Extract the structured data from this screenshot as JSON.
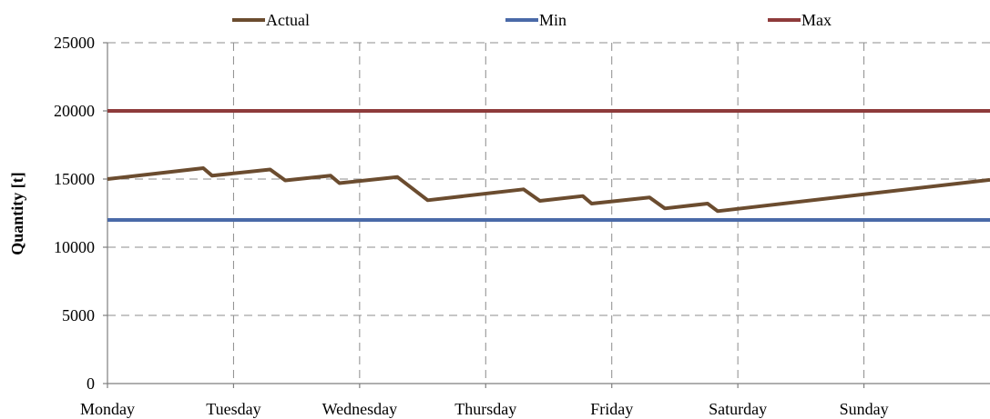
{
  "chart_data": {
    "type": "line",
    "title": "",
    "xlabel": "",
    "ylabel": "Quantity [t]",
    "ylim": [
      0,
      25000
    ],
    "yticks": [
      0,
      5000,
      10000,
      15000,
      20000,
      25000
    ],
    "categories": [
      "Monday",
      "Tuesday",
      "Wednesday",
      "Thursday",
      "Friday",
      "Saturday",
      "Sunday"
    ],
    "xlim": [
      0,
      7
    ],
    "grid": true,
    "legend": "top",
    "series": [
      {
        "name": "Actual",
        "color": "#6b4c2f",
        "points": [
          [
            0,
            15000
          ],
          [
            0.76,
            15800
          ],
          [
            0.83,
            15250
          ],
          [
            1.29,
            15700
          ],
          [
            1.41,
            14900
          ],
          [
            1.77,
            15250
          ],
          [
            1.84,
            14700
          ],
          [
            2.3,
            15150
          ],
          [
            2.54,
            13450
          ],
          [
            3.3,
            14250
          ],
          [
            3.43,
            13400
          ],
          [
            3.77,
            13750
          ],
          [
            3.84,
            13200
          ],
          [
            4.3,
            13650
          ],
          [
            4.42,
            12850
          ],
          [
            4.76,
            13200
          ],
          [
            4.84,
            12650
          ],
          [
            7.0,
            14950
          ]
        ]
      },
      {
        "name": "Min",
        "color": "#4a6aa8",
        "points": [
          [
            0,
            12000
          ],
          [
            7.0,
            12000
          ]
        ]
      },
      {
        "name": "Max",
        "color": "#8e3b3b",
        "points": [
          [
            0,
            20000
          ],
          [
            7.0,
            20000
          ]
        ]
      }
    ]
  }
}
